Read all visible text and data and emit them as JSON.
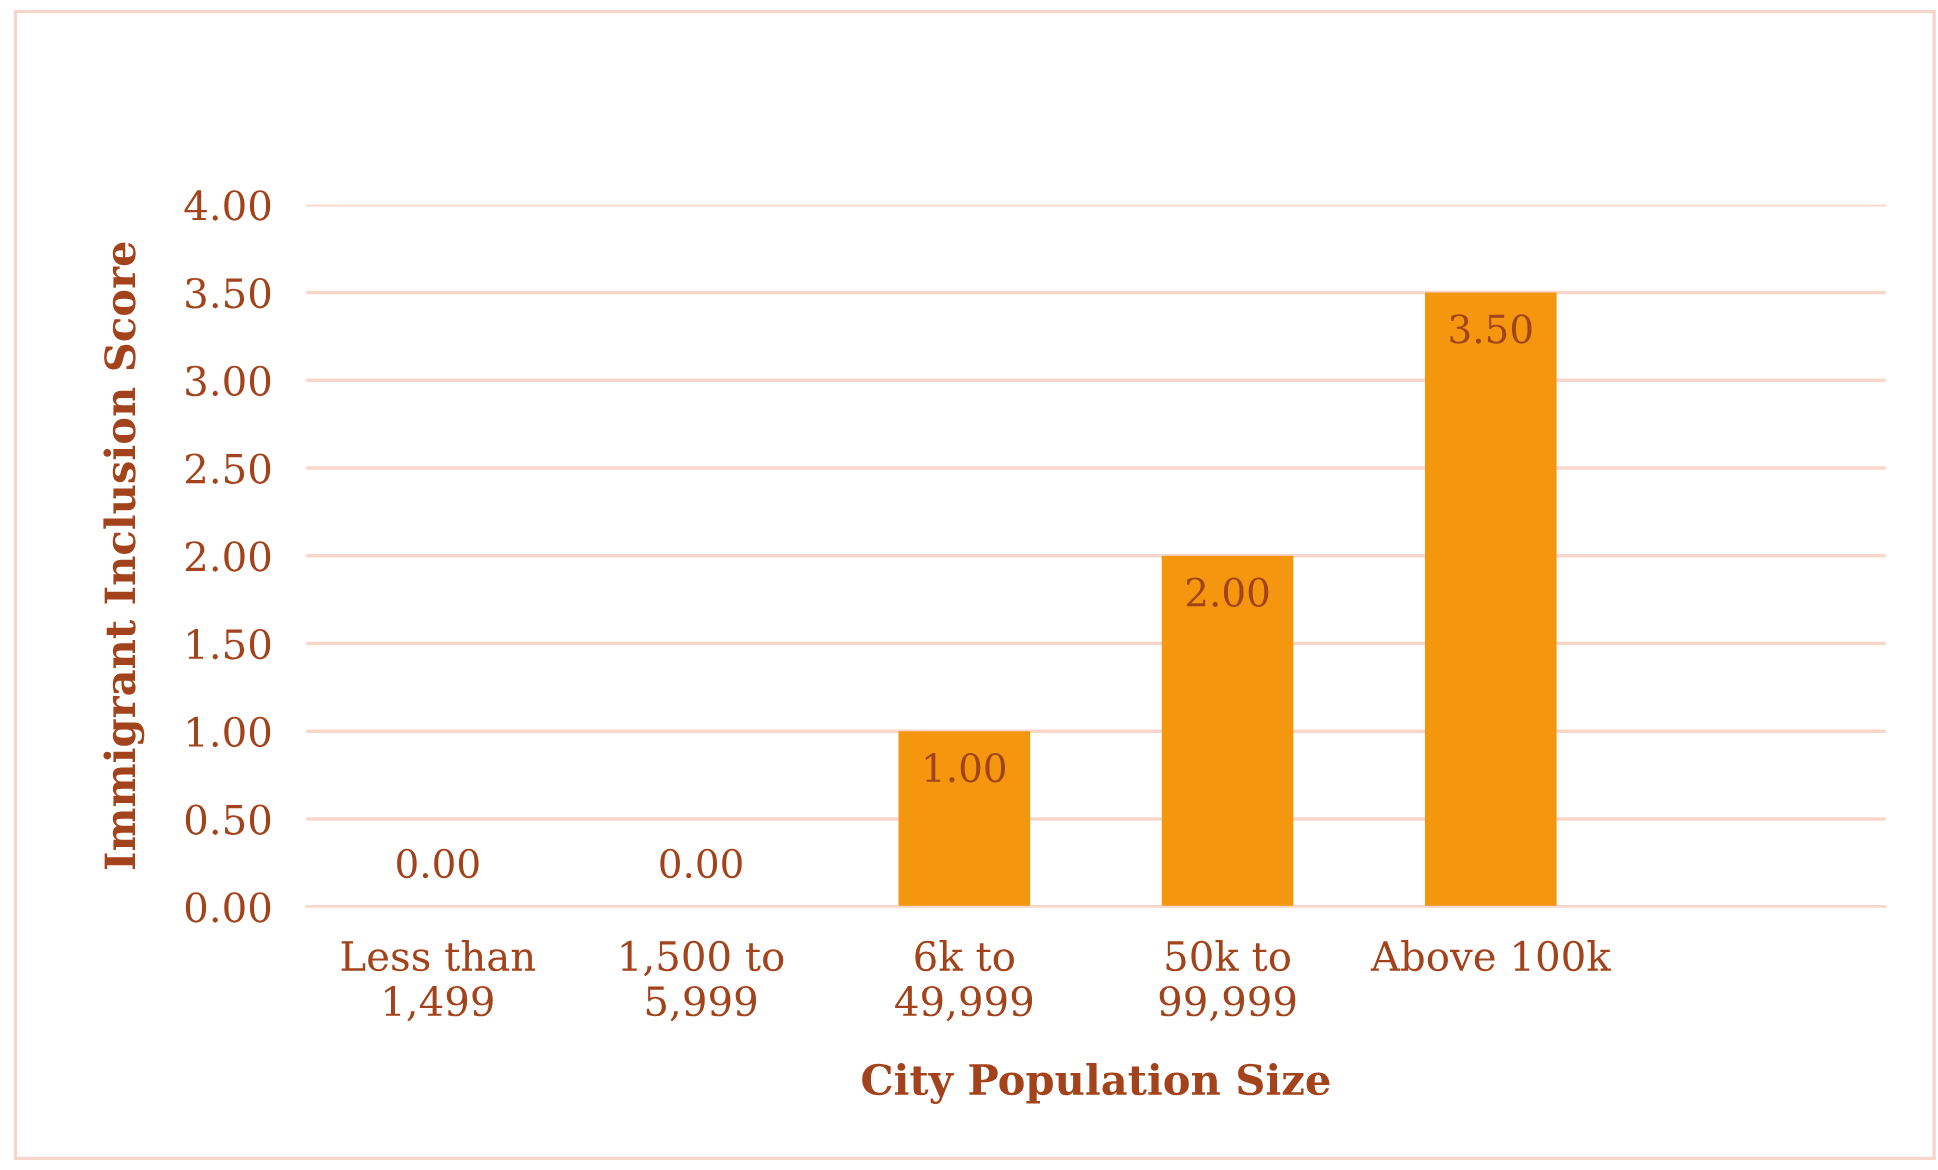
{
  "chart_data": {
    "type": "bar",
    "xlabel": "City Population Size",
    "ylabel": "Immigrant Inclusion Score",
    "categories": [
      "Less than\n1,499",
      "1,500 to\n5,999",
      "6k to\n49,999",
      "50k to\n99,999",
      "Above 100k",
      null
    ],
    "values": [
      0,
      0,
      1,
      2,
      3.5,
      null
    ],
    "value_labels": [
      "0.00",
      "0.00",
      "1.00",
      "2.00",
      "3.50",
      null
    ],
    "color": "#f5960f",
    "ylim": [
      0,
      4
    ],
    "yticks": [
      {
        "value": 0,
        "label": "0.00"
      },
      {
        "value": 0.5,
        "label": "0.50"
      },
      {
        "value": 1,
        "label": "1.00"
      },
      {
        "value": 1.5,
        "label": "1.50"
      },
      {
        "value": 2,
        "label": "2.00"
      },
      {
        "value": 2.5,
        "label": "2.50"
      },
      {
        "value": 3,
        "label": "3.00"
      },
      {
        "value": 3.5,
        "label": "3.50"
      },
      {
        "value": 4,
        "label": "4.00"
      }
    ],
    "grid": "y"
  }
}
